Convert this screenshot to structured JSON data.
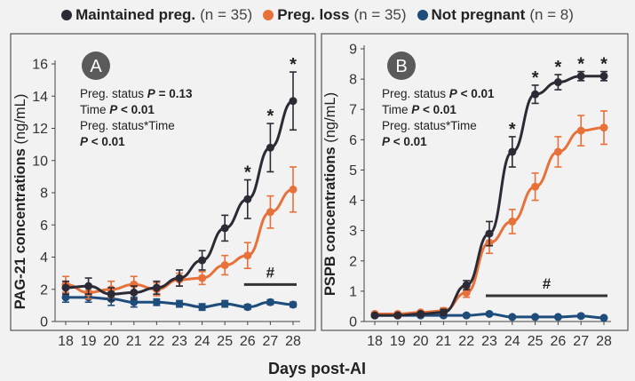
{
  "legend": [
    {
      "name": "Maintained preg.",
      "n": "(n = 35)",
      "color": "#2b2a35"
    },
    {
      "name": "Preg. loss",
      "n": "(n = 35)",
      "color": "#e8713a"
    },
    {
      "name": "Not pregnant",
      "n": "(n = 8)",
      "color": "#1e4d7b"
    }
  ],
  "xlabel": "Days post-AI",
  "chart_data": [
    {
      "type": "line",
      "panel": "A",
      "ylabel": "PAG-21 concentrations (ng/mL)",
      "ylabel_bold": "PAG-21 concentrations",
      "ylabel_unit": "(ng/mL)",
      "ylim": [
        0,
        16
      ],
      "yticks": [
        0,
        2,
        4,
        6,
        8,
        10,
        12,
        14,
        16
      ],
      "x": [
        18,
        19,
        20,
        21,
        22,
        23,
        24,
        25,
        26,
        27,
        28
      ],
      "series": [
        {
          "name": "Not pregnant",
          "color": "#1e4d7b",
          "values": [
            1.5,
            1.5,
            1.4,
            1.2,
            1.2,
            1.1,
            0.9,
            1.1,
            0.9,
            1.2,
            1.05
          ],
          "err": [
            0.3,
            0.3,
            0.4,
            0.3,
            0.2,
            0.2,
            0.2,
            0.2,
            0.15,
            0.15,
            0.15
          ]
        },
        {
          "name": "Preg. loss",
          "color": "#e8713a",
          "values": [
            2.3,
            1.8,
            2.0,
            2.3,
            2.0,
            2.6,
            2.7,
            3.5,
            4.1,
            6.8,
            8.2
          ],
          "err": [
            0.5,
            0.4,
            0.5,
            0.5,
            0.4,
            0.4,
            0.4,
            0.6,
            0.8,
            1.0,
            1.4
          ]
        },
        {
          "name": "Maintained preg.",
          "color": "#2b2a35",
          "values": [
            2.1,
            2.2,
            1.7,
            1.8,
            2.1,
            2.7,
            3.8,
            5.8,
            7.6,
            10.8,
            13.7
          ],
          "err": [
            0.4,
            0.5,
            0.4,
            0.4,
            0.4,
            0.5,
            0.6,
            0.8,
            1.2,
            1.5,
            1.8
          ]
        }
      ],
      "significance_marks": [
        26,
        27,
        28
      ],
      "hash_bar": {
        "x_from": 26,
        "x_to": 28,
        "y": 2.3,
        "label": "#"
      },
      "stats_lines": [
        [
          {
            "t": "Preg. status ",
            "b": false
          },
          {
            "t": "P",
            "b": true,
            "i": true
          },
          {
            "t": " = 0.13",
            "b": true
          }
        ],
        [
          {
            "t": "Time ",
            "b": false
          },
          {
            "t": "P",
            "b": true,
            "i": true
          },
          {
            "t": " < 0.01",
            "b": true
          }
        ],
        [
          {
            "t": "Preg. status*Time",
            "b": false
          }
        ],
        [
          {
            "t": "P",
            "b": true,
            "i": true
          },
          {
            "t": " < 0.01",
            "b": true
          }
        ]
      ]
    },
    {
      "type": "line",
      "panel": "B",
      "ylabel": "PSPB concentrations (ng/mL)",
      "ylabel_bold": "PSPB concentrations",
      "ylabel_unit": "(ng/mL)",
      "ylim": [
        0,
        9
      ],
      "yticks": [
        0,
        1,
        2,
        3,
        4,
        5,
        6,
        7,
        8,
        9
      ],
      "x": [
        18,
        19,
        20,
        21,
        22,
        23,
        24,
        25,
        26,
        27,
        28
      ],
      "series": [
        {
          "name": "Not pregnant",
          "color": "#1e4d7b",
          "values": [
            0.2,
            0.2,
            0.2,
            0.2,
            0.2,
            0.25,
            0.15,
            0.15,
            0.15,
            0.18,
            0.12
          ],
          "err": [
            0.05,
            0.05,
            0.05,
            0.05,
            0.05,
            0.05,
            0.04,
            0.04,
            0.04,
            0.05,
            0.03
          ]
        },
        {
          "name": "Preg. loss",
          "color": "#e8713a",
          "values": [
            0.25,
            0.25,
            0.3,
            0.35,
            0.95,
            2.6,
            3.3,
            4.45,
            5.6,
            6.3,
            6.4
          ],
          "err": [
            0.05,
            0.05,
            0.05,
            0.1,
            0.15,
            0.35,
            0.4,
            0.45,
            0.5,
            0.5,
            0.55
          ]
        },
        {
          "name": "Maintained preg.",
          "color": "#2b2a35",
          "values": [
            0.2,
            0.2,
            0.25,
            0.3,
            1.2,
            2.9,
            5.6,
            7.5,
            7.9,
            8.1,
            8.1
          ],
          "err": [
            0.05,
            0.05,
            0.05,
            0.1,
            0.15,
            0.4,
            0.5,
            0.3,
            0.25,
            0.15,
            0.15
          ]
        }
      ],
      "significance_marks": [
        24,
        25,
        26,
        27,
        28
      ],
      "hash_bar": {
        "x_from": 23,
        "x_to": 28,
        "y": 0.85,
        "label": "#"
      },
      "stats_lines": [
        [
          {
            "t": "Preg. status ",
            "b": false
          },
          {
            "t": "P",
            "b": true,
            "i": true
          },
          {
            "t": " < 0.01",
            "b": true
          }
        ],
        [
          {
            "t": "Time ",
            "b": false
          },
          {
            "t": "P",
            "b": true,
            "i": true
          },
          {
            "t": " < 0.01",
            "b": true
          }
        ],
        [
          {
            "t": "Preg. status*Time",
            "b": false
          }
        ],
        [
          {
            "t": "P",
            "b": true,
            "i": true
          },
          {
            "t": " < 0.01",
            "b": true
          }
        ]
      ]
    }
  ]
}
